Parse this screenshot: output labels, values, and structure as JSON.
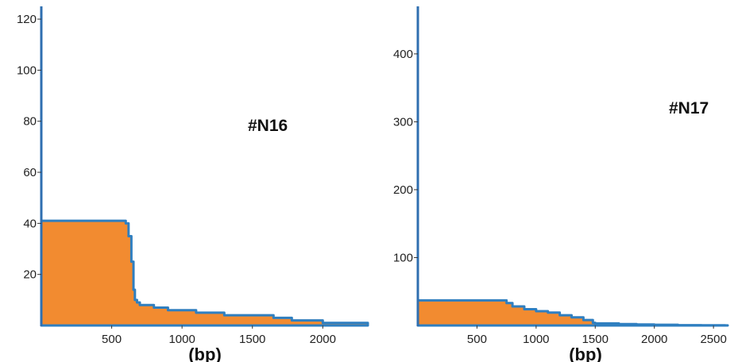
{
  "colors": {
    "fill": "#f28b30",
    "edge": "#2f7fc0",
    "axis": "#2f6fb0",
    "text": "#222222"
  },
  "chart_data": [
    {
      "type": "area",
      "panel_label": "#N16",
      "xlabel": "(bp)",
      "ylabel": "",
      "xlim": [
        0,
        2320
      ],
      "ylim": [
        0,
        125
      ],
      "x_ticks": [
        500,
        1000,
        1500,
        2000
      ],
      "y_ticks": [
        20,
        40,
        60,
        80,
        100,
        120
      ],
      "grid": false,
      "series": [
        {
          "x": [
            0,
            560,
            600,
            620,
            640,
            655,
            665,
            680,
            700,
            750,
            800,
            900,
            1000,
            1100,
            1200,
            1300,
            1400,
            1500,
            1600,
            1650,
            1700,
            1780,
            1850,
            2000,
            2100,
            2200,
            2300,
            2320
          ],
          "y": [
            41,
            41,
            40,
            35,
            25,
            14,
            10,
            9,
            8,
            8,
            7,
            6,
            6,
            5,
            5,
            4,
            4,
            4,
            4,
            3,
            3,
            2,
            2,
            1,
            1,
            1,
            1,
            0
          ]
        }
      ]
    },
    {
      "type": "area",
      "panel_label": "#N17",
      "xlabel": "(bp)",
      "ylabel": "",
      "xlim": [
        0,
        2620
      ],
      "ylim": [
        0,
        470
      ],
      "x_ticks": [
        500,
        1000,
        1500,
        2000,
        2500
      ],
      "y_ticks": [
        100,
        200,
        300,
        400
      ],
      "grid": false,
      "series": [
        {
          "x": [
            0,
            700,
            750,
            800,
            900,
            1000,
            1100,
            1200,
            1300,
            1400,
            1480,
            1500,
            1700,
            1850,
            2000,
            2200,
            2400,
            2600,
            2620
          ],
          "y": [
            37,
            37,
            33,
            28,
            24,
            21,
            19,
            15,
            12,
            8,
            4,
            3,
            2,
            1.5,
            1,
            0.5,
            0.3,
            0.2,
            0
          ]
        }
      ]
    }
  ]
}
